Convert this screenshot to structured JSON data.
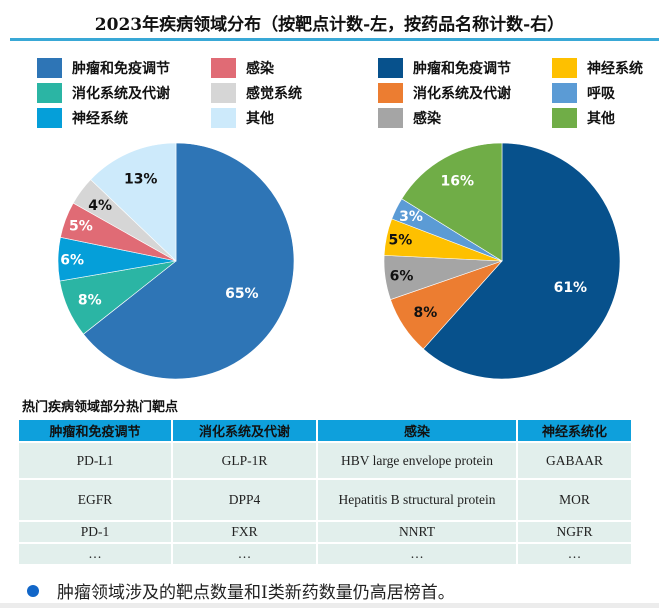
{
  "header": {
    "title": "2023年疾病领域分布（按靶点计数-左，按药品名称计数-右）"
  },
  "chart_data": [
    {
      "type": "pie",
      "title": "按靶点计数",
      "categories": [
        "肿瘤和免疫调节",
        "消化系统及代谢",
        "神经系统",
        "感染",
        "感觉系统",
        "其他"
      ],
      "values": [
        65,
        8,
        6,
        5,
        4,
        13
      ],
      "labels": [
        "65%",
        "8%",
        "6%",
        "5%",
        "4%",
        "13%"
      ],
      "colors": [
        "#2e75b6",
        "#2bb5a4",
        "#059fd9",
        "#e06b75",
        "#d6d6d6",
        "#cdeafb"
      ],
      "label_colors": [
        "#ffffff",
        "#ffffff",
        "#ffffff",
        "#ffffff",
        "#111111",
        "#111111"
      ],
      "legend": {
        "position": "top",
        "order": [
          0,
          3,
          1,
          4,
          2,
          5
        ]
      },
      "start": "top",
      "direction": "clockwise"
    },
    {
      "type": "pie",
      "title": "按药品名称计数",
      "categories": [
        "肿瘤和免疫调节",
        "消化系统及代谢",
        "感染",
        "神经系统",
        "呼吸",
        "其他"
      ],
      "values": [
        61,
        8,
        6,
        5,
        3,
        16
      ],
      "labels": [
        "61%",
        "8%",
        "6%",
        "5%",
        "3%",
        "16%"
      ],
      "colors": [
        "#07518c",
        "#ec7d31",
        "#a5a5a5",
        "#fec000",
        "#5b9bd5",
        "#70ad47"
      ],
      "label_colors": [
        "#ffffff",
        "#111111",
        "#111111",
        "#111111",
        "#ffffff",
        "#ffffff"
      ],
      "legend": {
        "position": "top",
        "order": [
          0,
          3,
          1,
          4,
          2,
          5
        ]
      },
      "start": "top",
      "direction": "clockwise"
    }
  ],
  "table": {
    "title": "热门疾病领域部分热门靶点",
    "headers": [
      "肿瘤和免疫调节",
      "消化系统及代谢",
      "感染",
      "神经系统化"
    ],
    "rows": [
      [
        "PD-L1",
        "GLP-1R",
        "HBV large envelope protein",
        "GABAAR"
      ],
      [
        "EGFR",
        "DPP4",
        "Hepatitis B structural protein",
        "MOR"
      ],
      [
        "PD-1",
        "FXR",
        "NNRT",
        "NGFR"
      ],
      [
        "…",
        "…",
        "…",
        "…"
      ]
    ],
    "header_color": "#0ea0dc",
    "cell_color": "#e2efec"
  },
  "note": {
    "text": "肿瘤领域涉及的靶点数量和I类新药数量仍高居榜首。",
    "bullet_color": "#1166c8"
  }
}
